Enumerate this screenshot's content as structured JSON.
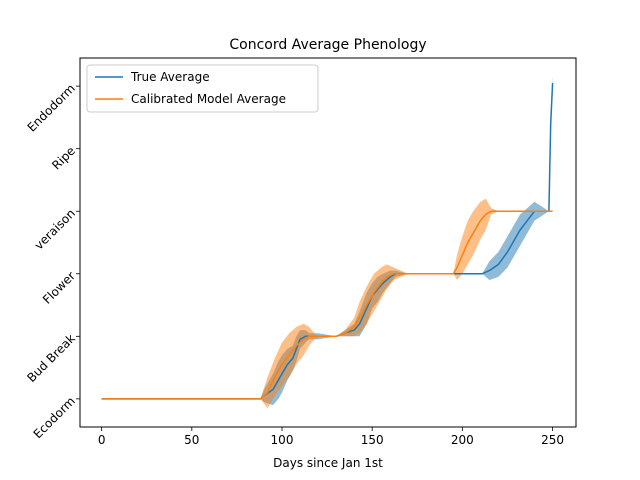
{
  "chart_data": {
    "type": "line",
    "title": "Concord Average Phenology",
    "xlabel": "Days since Jan 1st",
    "ylabel": "",
    "xlim": [
      -12,
      263
    ],
    "ylim": [
      -0.45,
      5.45
    ],
    "x_ticks": [
      0,
      50,
      100,
      150,
      200,
      250
    ],
    "y_ticks": [
      {
        "value": 0,
        "label": "Ecodorm"
      },
      {
        "value": 1,
        "label": "Bud Break"
      },
      {
        "value": 2,
        "label": "Flower"
      },
      {
        "value": 3,
        "label": "veraison"
      },
      {
        "value": 4,
        "label": "Ripe"
      },
      {
        "value": 5,
        "label": "Endodorm"
      }
    ],
    "legend": {
      "position": "top-left"
    },
    "grid": false,
    "series": [
      {
        "name": "True Average",
        "color": "#1f77b4",
        "band_color": "#1f77b4",
        "x": [
          0,
          88,
          90,
          95,
          98,
          100,
          103,
          106,
          108,
          110,
          113,
          115,
          120,
          130,
          135,
          140,
          143,
          147,
          150,
          153,
          156,
          160,
          163,
          170,
          180,
          200,
          211,
          215,
          220,
          225,
          228,
          232,
          236,
          240,
          248,
          249,
          250
        ],
        "y": [
          0,
          0,
          0.05,
          0.15,
          0.3,
          0.4,
          0.55,
          0.65,
          0.8,
          0.95,
          1.0,
          1.0,
          1.0,
          1.0,
          1.05,
          1.1,
          1.2,
          1.45,
          1.65,
          1.75,
          1.85,
          1.95,
          2.0,
          2.0,
          2.0,
          2.0,
          2.0,
          2.05,
          2.15,
          2.35,
          2.5,
          2.7,
          2.85,
          3.0,
          3.0,
          4.4,
          5.05
        ],
        "band": [
          0,
          0,
          0.1,
          0.25,
          0.3,
          0.3,
          0.25,
          0.2,
          0.2,
          0.15,
          0.1,
          0.05,
          0.05,
          0,
          0.05,
          0.1,
          0.2,
          0.25,
          0.2,
          0.2,
          0.15,
          0.1,
          0.05,
          0,
          0,
          0,
          0,
          0.15,
          0.2,
          0.25,
          0.25,
          0.25,
          0.2,
          0.15,
          0,
          0.15,
          0.12
        ]
      },
      {
        "name": "Calibrated Model Average",
        "color": "#ff7f0e",
        "band_color": "#ff7f0e",
        "x": [
          0,
          88,
          92,
          96,
          100,
          104,
          108,
          112,
          115,
          118,
          120,
          130,
          135,
          140,
          143,
          147,
          151,
          155,
          158,
          162,
          170,
          180,
          195,
          197,
          200,
          203,
          206,
          210,
          213,
          216,
          220,
          240,
          250
        ],
        "y": [
          0,
          0,
          0.1,
          0.35,
          0.55,
          0.7,
          0.85,
          0.95,
          1.0,
          1.0,
          1.0,
          1.0,
          1.05,
          1.15,
          1.3,
          1.5,
          1.7,
          1.85,
          1.95,
          2.0,
          2.0,
          2.0,
          2.0,
          2.1,
          2.3,
          2.5,
          2.65,
          2.85,
          2.95,
          3.0,
          3.0,
          3.0,
          3.0
        ],
        "band": [
          0,
          0,
          0.25,
          0.3,
          0.35,
          0.35,
          0.3,
          0.25,
          0.15,
          0.05,
          0,
          0,
          0.05,
          0.15,
          0.25,
          0.3,
          0.3,
          0.25,
          0.2,
          0.1,
          0,
          0,
          0,
          0.2,
          0.3,
          0.35,
          0.35,
          0.3,
          0.25,
          0.05,
          0,
          0,
          0
        ]
      }
    ]
  }
}
